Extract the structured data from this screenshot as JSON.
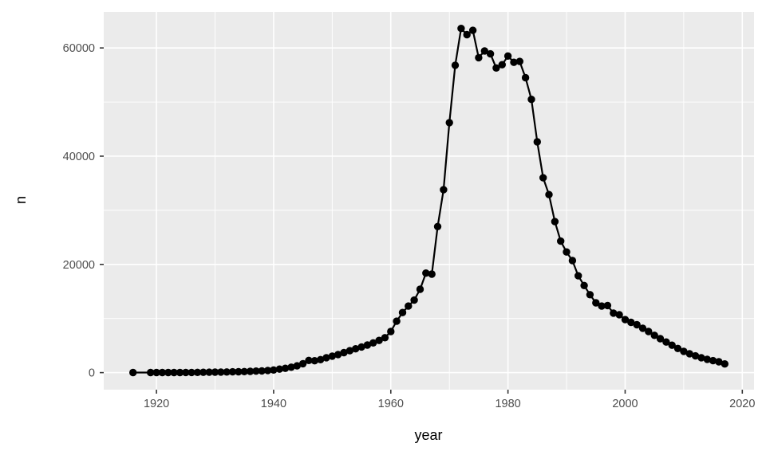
{
  "chart_data": {
    "type": "line",
    "title": "",
    "xlabel": "year",
    "ylabel": "n",
    "legend": "none",
    "grid": "major and minor white gridlines on grey panel",
    "marker": "filled black circles with connecting black line",
    "xlim": [
      1911,
      2022
    ],
    "ylim": [
      -3150,
      66650
    ],
    "x_ticks": [
      1920,
      1940,
      1960,
      1980,
      2000,
      2020
    ],
    "y_ticks": [
      0,
      20000,
      40000,
      60000
    ],
    "x_minor_gridlines": [
      1930,
      1950,
      1970,
      1990,
      2010
    ],
    "y_minor_gridlines": [
      10000,
      30000,
      50000
    ],
    "series": [
      {
        "name": "n",
        "x": [
          1916,
          1919,
          1920,
          1921,
          1922,
          1923,
          1924,
          1925,
          1926,
          1927,
          1928,
          1929,
          1930,
          1931,
          1932,
          1933,
          1934,
          1935,
          1936,
          1937,
          1938,
          1939,
          1940,
          1941,
          1942,
          1943,
          1944,
          1945,
          1946,
          1947,
          1948,
          1949,
          1950,
          1951,
          1952,
          1953,
          1954,
          1955,
          1956,
          1957,
          1958,
          1959,
          1960,
          1961,
          1962,
          1963,
          1964,
          1965,
          1966,
          1967,
          1968,
          1969,
          1970,
          1971,
          1972,
          1973,
          1974,
          1975,
          1976,
          1977,
          1978,
          1979,
          1980,
          1981,
          1982,
          1983,
          1984,
          1985,
          1986,
          1987,
          1988,
          1989,
          1990,
          1991,
          1992,
          1993,
          1994,
          1995,
          1996,
          1997,
          1998,
          1999,
          2000,
          2001,
          2002,
          2003,
          2004,
          2005,
          2006,
          2007,
          2008,
          2009,
          2010,
          2011,
          2012,
          2013,
          2014,
          2015,
          2016,
          2017
        ],
        "y": [
          20,
          10,
          12,
          14,
          16,
          18,
          22,
          28,
          35,
          45,
          55,
          70,
          85,
          100,
          120,
          145,
          170,
          200,
          235,
          275,
          330,
          400,
          490,
          650,
          800,
          1000,
          1250,
          1650,
          2250,
          2200,
          2400,
          2750,
          3050,
          3350,
          3700,
          4050,
          4400,
          4750,
          5100,
          5500,
          5950,
          6450,
          7600,
          9500,
          11100,
          12300,
          13400,
          15400,
          18400,
          18200,
          27000,
          33800,
          46200,
          56800,
          63600,
          62450,
          63250,
          58200,
          59450,
          58900,
          56300,
          56900,
          58500,
          57350,
          57500,
          54500,
          50500,
          42650,
          36000,
          32900,
          27900,
          24300,
          22300,
          20700,
          17900,
          16100,
          14400,
          12900,
          12300,
          12400,
          11000,
          10700,
          9800,
          9300,
          8850,
          8200,
          7600,
          6900,
          6280,
          5650,
          5060,
          4470,
          3930,
          3490,
          3090,
          2750,
          2460,
          2210,
          2010,
          1600
        ]
      }
    ],
    "colors": {
      "panel_background": "#EBEBEB",
      "gridline": "#FFFFFF",
      "point": "#000000",
      "line": "#000000",
      "tick_label": "#4D4D4D",
      "tick_mark": "#333333",
      "axis_title": "#000000",
      "outer_background": "#FFFFFF"
    }
  }
}
